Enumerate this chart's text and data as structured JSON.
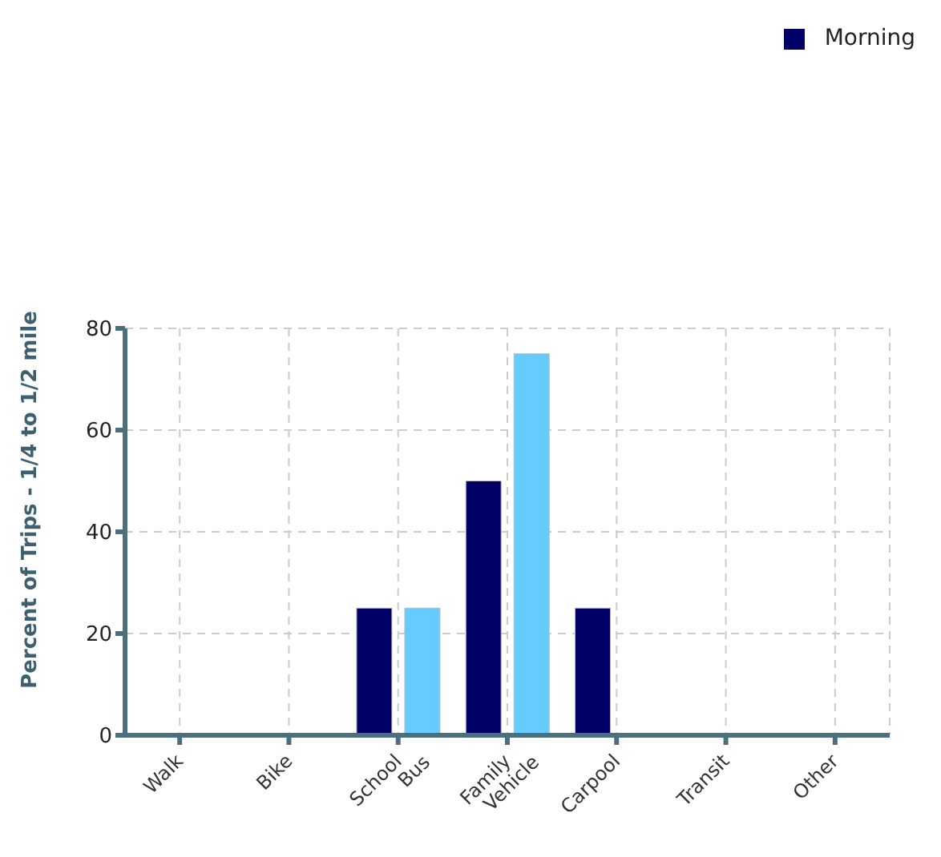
{
  "chart_data": {
    "type": "bar",
    "ylabel": "Percent of Trips - 1/4 to 1/2 mile",
    "categories": [
      "Walk",
      "Bike",
      "School Bus",
      "Family Vehicle",
      "Carpool",
      "Transit",
      "Other"
    ],
    "series": [
      {
        "name": "Morning",
        "color": "#000066",
        "values": [
          0,
          0,
          25,
          50,
          25,
          0,
          0
        ]
      },
      {
        "color": "#66ccff",
        "values": [
          0,
          0,
          25,
          75,
          0,
          0,
          0
        ]
      }
    ],
    "ylim": [
      0,
      80
    ],
    "yticks": [
      0,
      20,
      40,
      60,
      80
    ],
    "grid": true,
    "legend": "top right"
  }
}
